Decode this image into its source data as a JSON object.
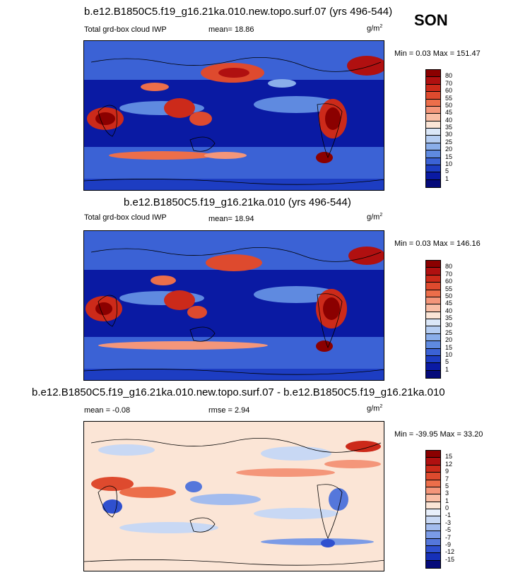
{
  "season": "SON",
  "units_base": "g/m",
  "units_exp": "2",
  "panel1": {
    "title": "b.e12.B1850C5.f19_g16.21ka.010.new.topo.surf.07 (yrs 496-544)",
    "variable": "Total grd-box cloud IWP",
    "mean": "mean=  18.86",
    "minmax": "Min =   0.03 Max = 151.47"
  },
  "panel2": {
    "title": "b.e12.B1850C5.f19_g16.21ka.010 (yrs 496-544)",
    "variable": "Total grd-box cloud IWP",
    "mean": "mean=  18.94",
    "minmax": "Min =   0.03 Max = 146.16"
  },
  "panel3": {
    "title": "b.e12.B1850C5.f19_g16.21ka.010.new.topo.surf.07 - b.e12.B1850C5.f19_g16.21ka.010",
    "mean": "mean =  -0.08",
    "rmse": "rmse =   2.94",
    "minmax": "Min = -39.95 Max =  33.20"
  },
  "cbar_abs": {
    "labels": [
      "80",
      "70",
      "60",
      "55",
      "50",
      "45",
      "40",
      "35",
      "30",
      "25",
      "20",
      "15",
      "10",
      "5",
      "1"
    ],
    "colors": [
      "#8b0000",
      "#b01010",
      "#cc2a1a",
      "#de4a2e",
      "#ec6e4a",
      "#f4967a",
      "#f9bea5",
      "#fbe5d6",
      "#dbe7f8",
      "#b5cdf2",
      "#8aaeea",
      "#5f8ae0",
      "#3b62d5",
      "#1d3dc2",
      "#0a1aa3",
      "#050a7a"
    ]
  },
  "cbar_diff": {
    "labels": [
      "15",
      "12",
      "9",
      "7",
      "5",
      "3",
      "1",
      "0",
      "-1",
      "-3",
      "-5",
      "-7",
      "-9",
      "-12",
      "-15"
    ],
    "colors": [
      "#8b0000",
      "#b01010",
      "#cc2a1a",
      "#de4a2e",
      "#ec6e4a",
      "#f4967a",
      "#f9bea5",
      "#fbe5d6",
      "#e8effb",
      "#c8d8f4",
      "#a3bcee",
      "#7b9be6",
      "#5577db",
      "#2f50cf",
      "#1630b8",
      "#050a7a"
    ]
  }
}
